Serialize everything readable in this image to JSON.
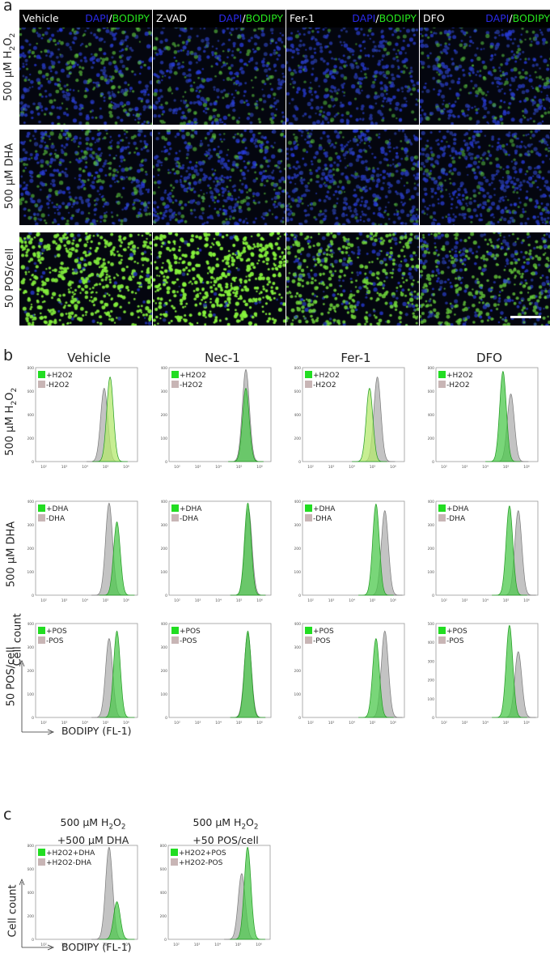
{
  "panel_a": {
    "letter": "a",
    "columns": [
      "Vehicle",
      "Z-VAD",
      "Fer-1",
      "DFO"
    ],
    "stain_dapi": "DAPI",
    "stain_sep": "/",
    "stain_bodipy": "BODIPY",
    "rows": [
      "500 μM H2O2",
      "500 μM DHA",
      "50 POS/cell"
    ],
    "row_label_parts": [
      {
        "pre": "500 μM H",
        "sub": "2",
        "mid": "O",
        "sub2": "2"
      },
      {
        "pre": "500 μM DHA",
        "sub": "",
        "mid": "",
        "sub2": ""
      },
      {
        "pre": "50 POS/cell",
        "sub": "",
        "mid": "",
        "sub2": ""
      }
    ],
    "brightness": [
      [
        0.35,
        0.3,
        0.2,
        0.25
      ],
      [
        0.3,
        0.3,
        0.2,
        0.2
      ],
      [
        0.9,
        0.95,
        0.7,
        0.55
      ]
    ]
  },
  "panel_b": {
    "letter": "b",
    "columns": [
      "Vehicle",
      "Nec-1",
      "Fer-1",
      "DFO"
    ],
    "y_axis_title": "Cell count",
    "x_axis_title": "BODIPY (FL-1)",
    "x_ticks": [
      "10²",
      "10³",
      "10⁴",
      "10⁵",
      "10⁶"
    ],
    "rows": [
      {
        "label": "500 μM H2O2",
        "label_pre": "500 μM H",
        "label_sub": "2",
        "label_mid": "O",
        "label_sub2": "2",
        "legend_plus": "+H2O2",
        "legend_minus": "-H2O2",
        "y_ticks": [
          [
            "800",
            "600",
            "400",
            "200",
            "0"
          ],
          [
            "400",
            "300",
            "200",
            "100",
            "0"
          ],
          [
            "800",
            "600",
            "400",
            "200",
            "0"
          ],
          [
            "800",
            "600",
            "400",
            "200",
            "0"
          ]
        ],
        "peaks": [
          {
            "plus_center": 5.0,
            "plus_height": 0.9,
            "minus_center": 4.7,
            "minus_height": 0.78,
            "plus_color": "#b4e86e"
          },
          {
            "plus_center": 5.12,
            "plus_height": 0.78,
            "minus_center": 5.12,
            "minus_height": 0.98,
            "plus_color": "#4cc84c"
          },
          {
            "plus_center": 4.62,
            "plus_height": 0.78,
            "minus_center": 5.02,
            "minus_height": 0.9,
            "plus_color": "#b4e86e"
          },
          {
            "plus_center": 4.62,
            "plus_height": 0.96,
            "minus_center": 5.02,
            "minus_height": 0.72,
            "plus_color": "#4cc84c"
          }
        ]
      },
      {
        "label": "500 μM DHA",
        "legend_plus": "+DHA",
        "legend_minus": "-DHA",
        "y_ticks": [
          [
            "400",
            "300",
            "200",
            "100",
            "0"
          ],
          [
            "400",
            "300",
            "200",
            "100",
            "0"
          ],
          [
            "400",
            "300",
            "200",
            "100",
            "0"
          ],
          [
            "400",
            "300",
            "200",
            "100",
            "0"
          ]
        ],
        "peaks": [
          {
            "plus_center": 5.35,
            "plus_height": 0.78,
            "minus_center": 4.95,
            "minus_height": 0.98,
            "plus_color": "#4cc84c"
          },
          {
            "plus_center": 5.22,
            "plus_height": 0.98,
            "minus_center": 5.25,
            "minus_height": 0.92,
            "plus_color": "#4cc84c"
          },
          {
            "plus_center": 4.95,
            "plus_height": 0.97,
            "minus_center": 5.4,
            "minus_height": 0.9,
            "plus_color": "#4cc84c"
          },
          {
            "plus_center": 4.95,
            "plus_height": 0.95,
            "minus_center": 5.4,
            "minus_height": 0.9,
            "plus_color": "#4cc84c"
          }
        ]
      },
      {
        "label": "50 POS/cell",
        "legend_plus": "+POS",
        "legend_minus": "-POS",
        "y_ticks": [
          [
            "400",
            "300",
            "200",
            "100",
            "0"
          ],
          [
            "400",
            "300",
            "200",
            "100",
            "0"
          ],
          [
            "400",
            "300",
            "200",
            "100",
            "0"
          ],
          [
            "500",
            "400",
            "300",
            "200",
            "100",
            "0"
          ]
        ],
        "peaks": [
          {
            "plus_center": 5.35,
            "plus_height": 0.92,
            "minus_center": 4.95,
            "minus_height": 0.84,
            "plus_color": "#4cc84c"
          },
          {
            "plus_center": 5.22,
            "plus_height": 0.92,
            "minus_center": 5.22,
            "minus_height": 0.9,
            "plus_color": "#4cc84c"
          },
          {
            "plus_center": 4.95,
            "plus_height": 0.84,
            "minus_center": 5.4,
            "minus_height": 0.92,
            "plus_color": "#4cc84c"
          },
          {
            "plus_center": 4.95,
            "plus_height": 0.98,
            "minus_center": 5.4,
            "minus_height": 0.7,
            "plus_color": "#4cc84c"
          }
        ]
      }
    ]
  },
  "panel_c": {
    "letter": "c",
    "y_axis_title": "Cell count",
    "x_axis_title": "BODIPY (FL-1)",
    "plots": [
      {
        "title_line1_pre": "500 μM H",
        "title_line1_sub": "2",
        "title_line1_mid": "O",
        "title_line1_sub2": "2",
        "title_line2": "+500 μM DHA",
        "legend_plus": "+H2O2+DHA",
        "legend_minus": "+H2O2-DHA",
        "y_ticks": [
          "800",
          "600",
          "400",
          "200",
          "0"
        ],
        "plus_center": 5.35,
        "plus_height": 0.4,
        "minus_center": 4.95,
        "minus_height": 0.98,
        "plus_color": "#4cc84c"
      },
      {
        "title_line1_pre": "500 μM H",
        "title_line1_sub": "2",
        "title_line1_mid": "O",
        "title_line1_sub2": "2",
        "title_line2": "+50 POS/cell",
        "legend_plus": "+H2O2+POS",
        "legend_minus": "+H2O2-POS",
        "y_ticks": [
          "800",
          "600",
          "400",
          "200",
          "0"
        ],
        "plus_center": 5.25,
        "plus_height": 0.98,
        "minus_center": 4.95,
        "minus_height": 0.7,
        "plus_color": "#4cc84c"
      }
    ]
  },
  "colors": {
    "grey_fill": "#b9b9b9",
    "grey_line": "#7a7a7a",
    "green_line": "#1f9a1f",
    "legend_green": "#22dd22",
    "legend_grey": "#c8b5b5"
  }
}
